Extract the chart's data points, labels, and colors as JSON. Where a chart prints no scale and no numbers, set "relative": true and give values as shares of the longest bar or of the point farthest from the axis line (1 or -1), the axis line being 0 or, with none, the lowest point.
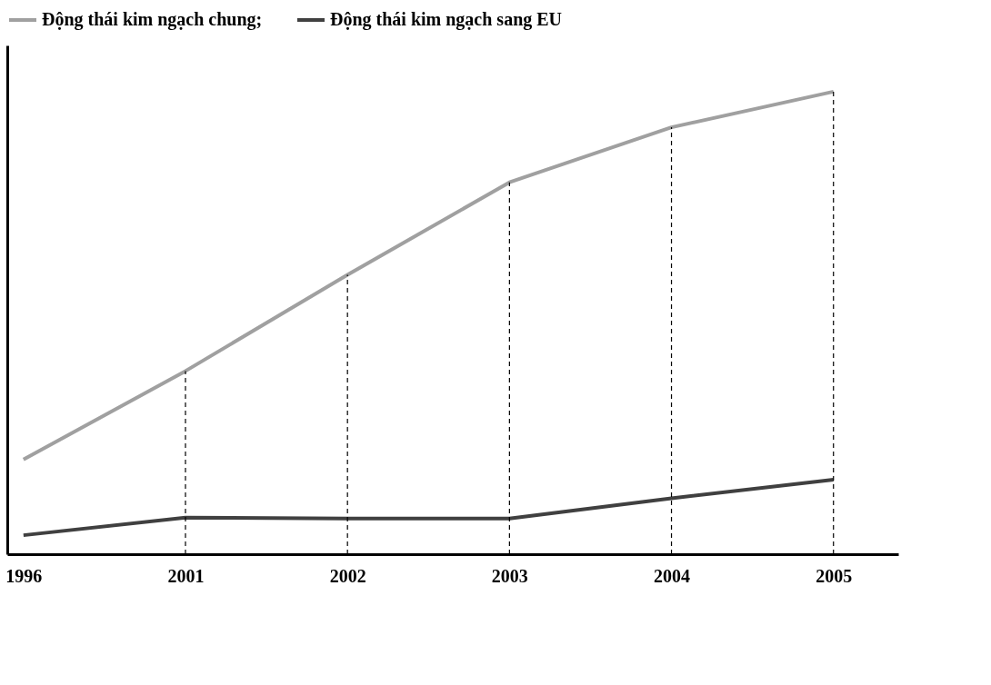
{
  "chart_data": {
    "type": "line",
    "relative": true,
    "categories": [
      "1996",
      "2001",
      "2002",
      "2003",
      "2004",
      "2005"
    ],
    "series": [
      {
        "name": "Động thái kim ngạch chung;",
        "color": "#a0a0a0",
        "values": [
          0.205,
          0.396,
          0.604,
          0.804,
          0.923,
          1
        ]
      },
      {
        "name": "Động thái kim ngạch sang EU",
        "color": "#404040",
        "values": [
          0.041,
          0.079,
          0.077,
          0.077,
          0.121,
          0.161
        ]
      }
    ],
    "ref_lines": [
      {
        "axis": "x",
        "value": "2001",
        "color": "#000000",
        "line_style": "dashed"
      },
      {
        "axis": "x",
        "value": "2002",
        "color": "#000000",
        "line_style": "dashed"
      },
      {
        "axis": "x",
        "value": "2003",
        "color": "#000000",
        "line_style": "dashed"
      },
      {
        "axis": "x",
        "value": "2004",
        "color": "#000000",
        "line_style": "dashed"
      },
      {
        "axis": "x",
        "value": "2005",
        "color": "#000000",
        "line_style": "dashed"
      }
    ],
    "legend": "top",
    "grid": false,
    "marker": "none",
    "line_style": "solid"
  }
}
